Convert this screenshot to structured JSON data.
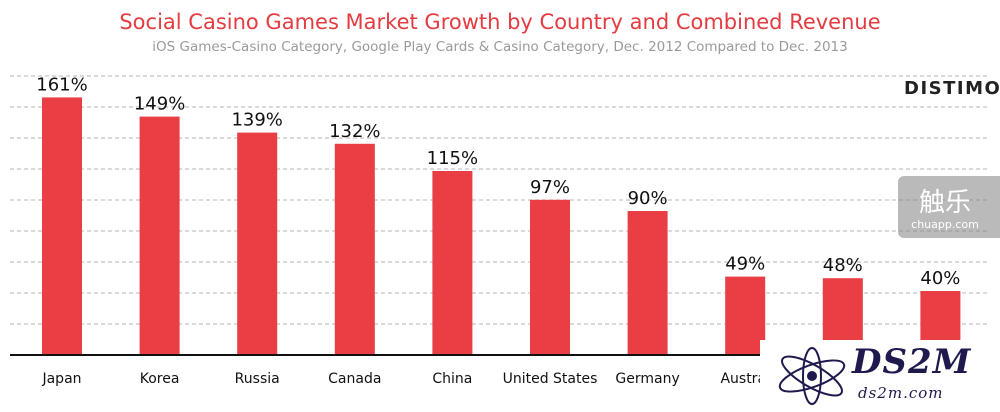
{
  "chart_data": {
    "type": "bar",
    "title": "Social Casino Games Market Growth by Country and Combined Revenue",
    "subtitle": "iOS Games-Casino Category, Google Play Cards & Casino Category, Dec. 2012 Compared to Dec. 2013",
    "categories": [
      "Japan",
      "Korea",
      "Russia",
      "Canada",
      "China",
      "United States",
      "Germany",
      "Austral",
      "",
      ""
    ],
    "values": [
      161,
      149,
      139,
      132,
      115,
      97,
      90,
      49,
      48,
      40
    ],
    "data_labels": [
      "161%",
      "149%",
      "139%",
      "132%",
      "115%",
      "97%",
      "90%",
      "49%",
      "48%",
      "40%"
    ],
    "ylim": [
      0,
      175
    ],
    "grid": true,
    "bar_color": "#e83e44"
  },
  "brand": "DISTIMO",
  "watermark_chuapp": {
    "zh": "触乐",
    "en": "chuapp.com"
  },
  "watermark_ds2m": {
    "big": "DS2M",
    "small": "ds2m.com"
  }
}
